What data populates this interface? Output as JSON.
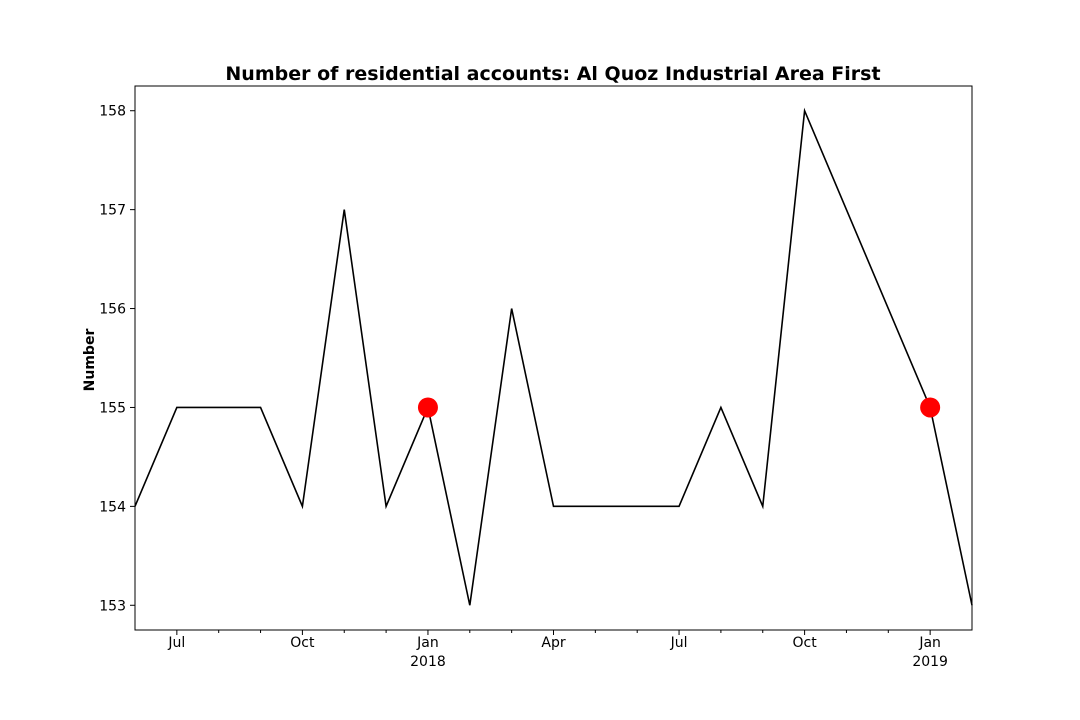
{
  "chart_data": {
    "type": "line",
    "title": "Number of residential accounts: Al Quoz Industrial Area First",
    "xlabel": "",
    "ylabel": "Number",
    "x": [
      "2017-06",
      "2017-07",
      "2017-08",
      "2017-09",
      "2017-10",
      "2017-11",
      "2017-12",
      "2018-01",
      "2018-02",
      "2018-03",
      "2018-04",
      "2018-05",
      "2018-06",
      "2018-07",
      "2018-08",
      "2018-09",
      "2018-10",
      "2018-11",
      "2018-12",
      "2019-01",
      "2019-02"
    ],
    "series": [
      {
        "name": "",
        "color": "#000000",
        "values": [
          154,
          155,
          155,
          155,
          154,
          157,
          154,
          155,
          153,
          156,
          154,
          154,
          154,
          154,
          155,
          154,
          158,
          157,
          156,
          155,
          153
        ]
      }
    ],
    "highlight_points": [
      {
        "x": "2018-01",
        "y": 155,
        "color": "#ff0000"
      },
      {
        "x": "2019-01",
        "y": 155,
        "color": "#ff0000"
      }
    ],
    "xlim": [
      "2017-06",
      "2019-02"
    ],
    "ylim": [
      152.75,
      158.25
    ],
    "yticks": [
      153,
      154,
      155,
      156,
      157,
      158
    ],
    "xticks_major": [
      {
        "x": "2017-07",
        "label": "Jul",
        "sublabel": ""
      },
      {
        "x": "2017-10",
        "label": "Oct",
        "sublabel": ""
      },
      {
        "x": "2018-01",
        "label": "Jan",
        "sublabel": "2018"
      },
      {
        "x": "2018-04",
        "label": "Apr",
        "sublabel": ""
      },
      {
        "x": "2018-07",
        "label": "Jul",
        "sublabel": ""
      },
      {
        "x": "2018-10",
        "label": "Oct",
        "sublabel": ""
      },
      {
        "x": "2019-01",
        "label": "Jan",
        "sublabel": "2019"
      }
    ],
    "xticks_minor": [
      "2017-08",
      "2017-09",
      "2017-11",
      "2017-12",
      "2018-02",
      "2018-03",
      "2018-05",
      "2018-06",
      "2018-08",
      "2018-09",
      "2018-11",
      "2018-12"
    ],
    "grid": false,
    "legend": "none"
  }
}
